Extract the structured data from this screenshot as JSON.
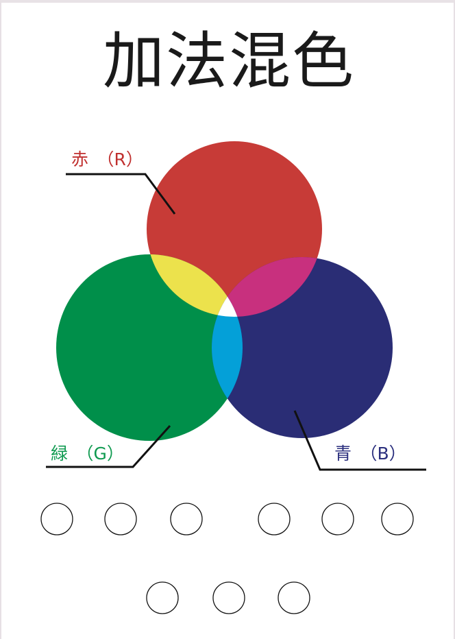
{
  "title": "加法混色",
  "labels": {
    "red": "赤　（R）",
    "green": "緑　（G）",
    "blue": "青　（B）"
  },
  "colors": {
    "red": "#c73b37",
    "green": "#008f4a",
    "blue": "#2a2d75",
    "yellow": "#ece24c",
    "magenta": "#c8307e",
    "cyan": "#04a0d8",
    "white": "#ffffff",
    "leader": "#111111"
  }
}
